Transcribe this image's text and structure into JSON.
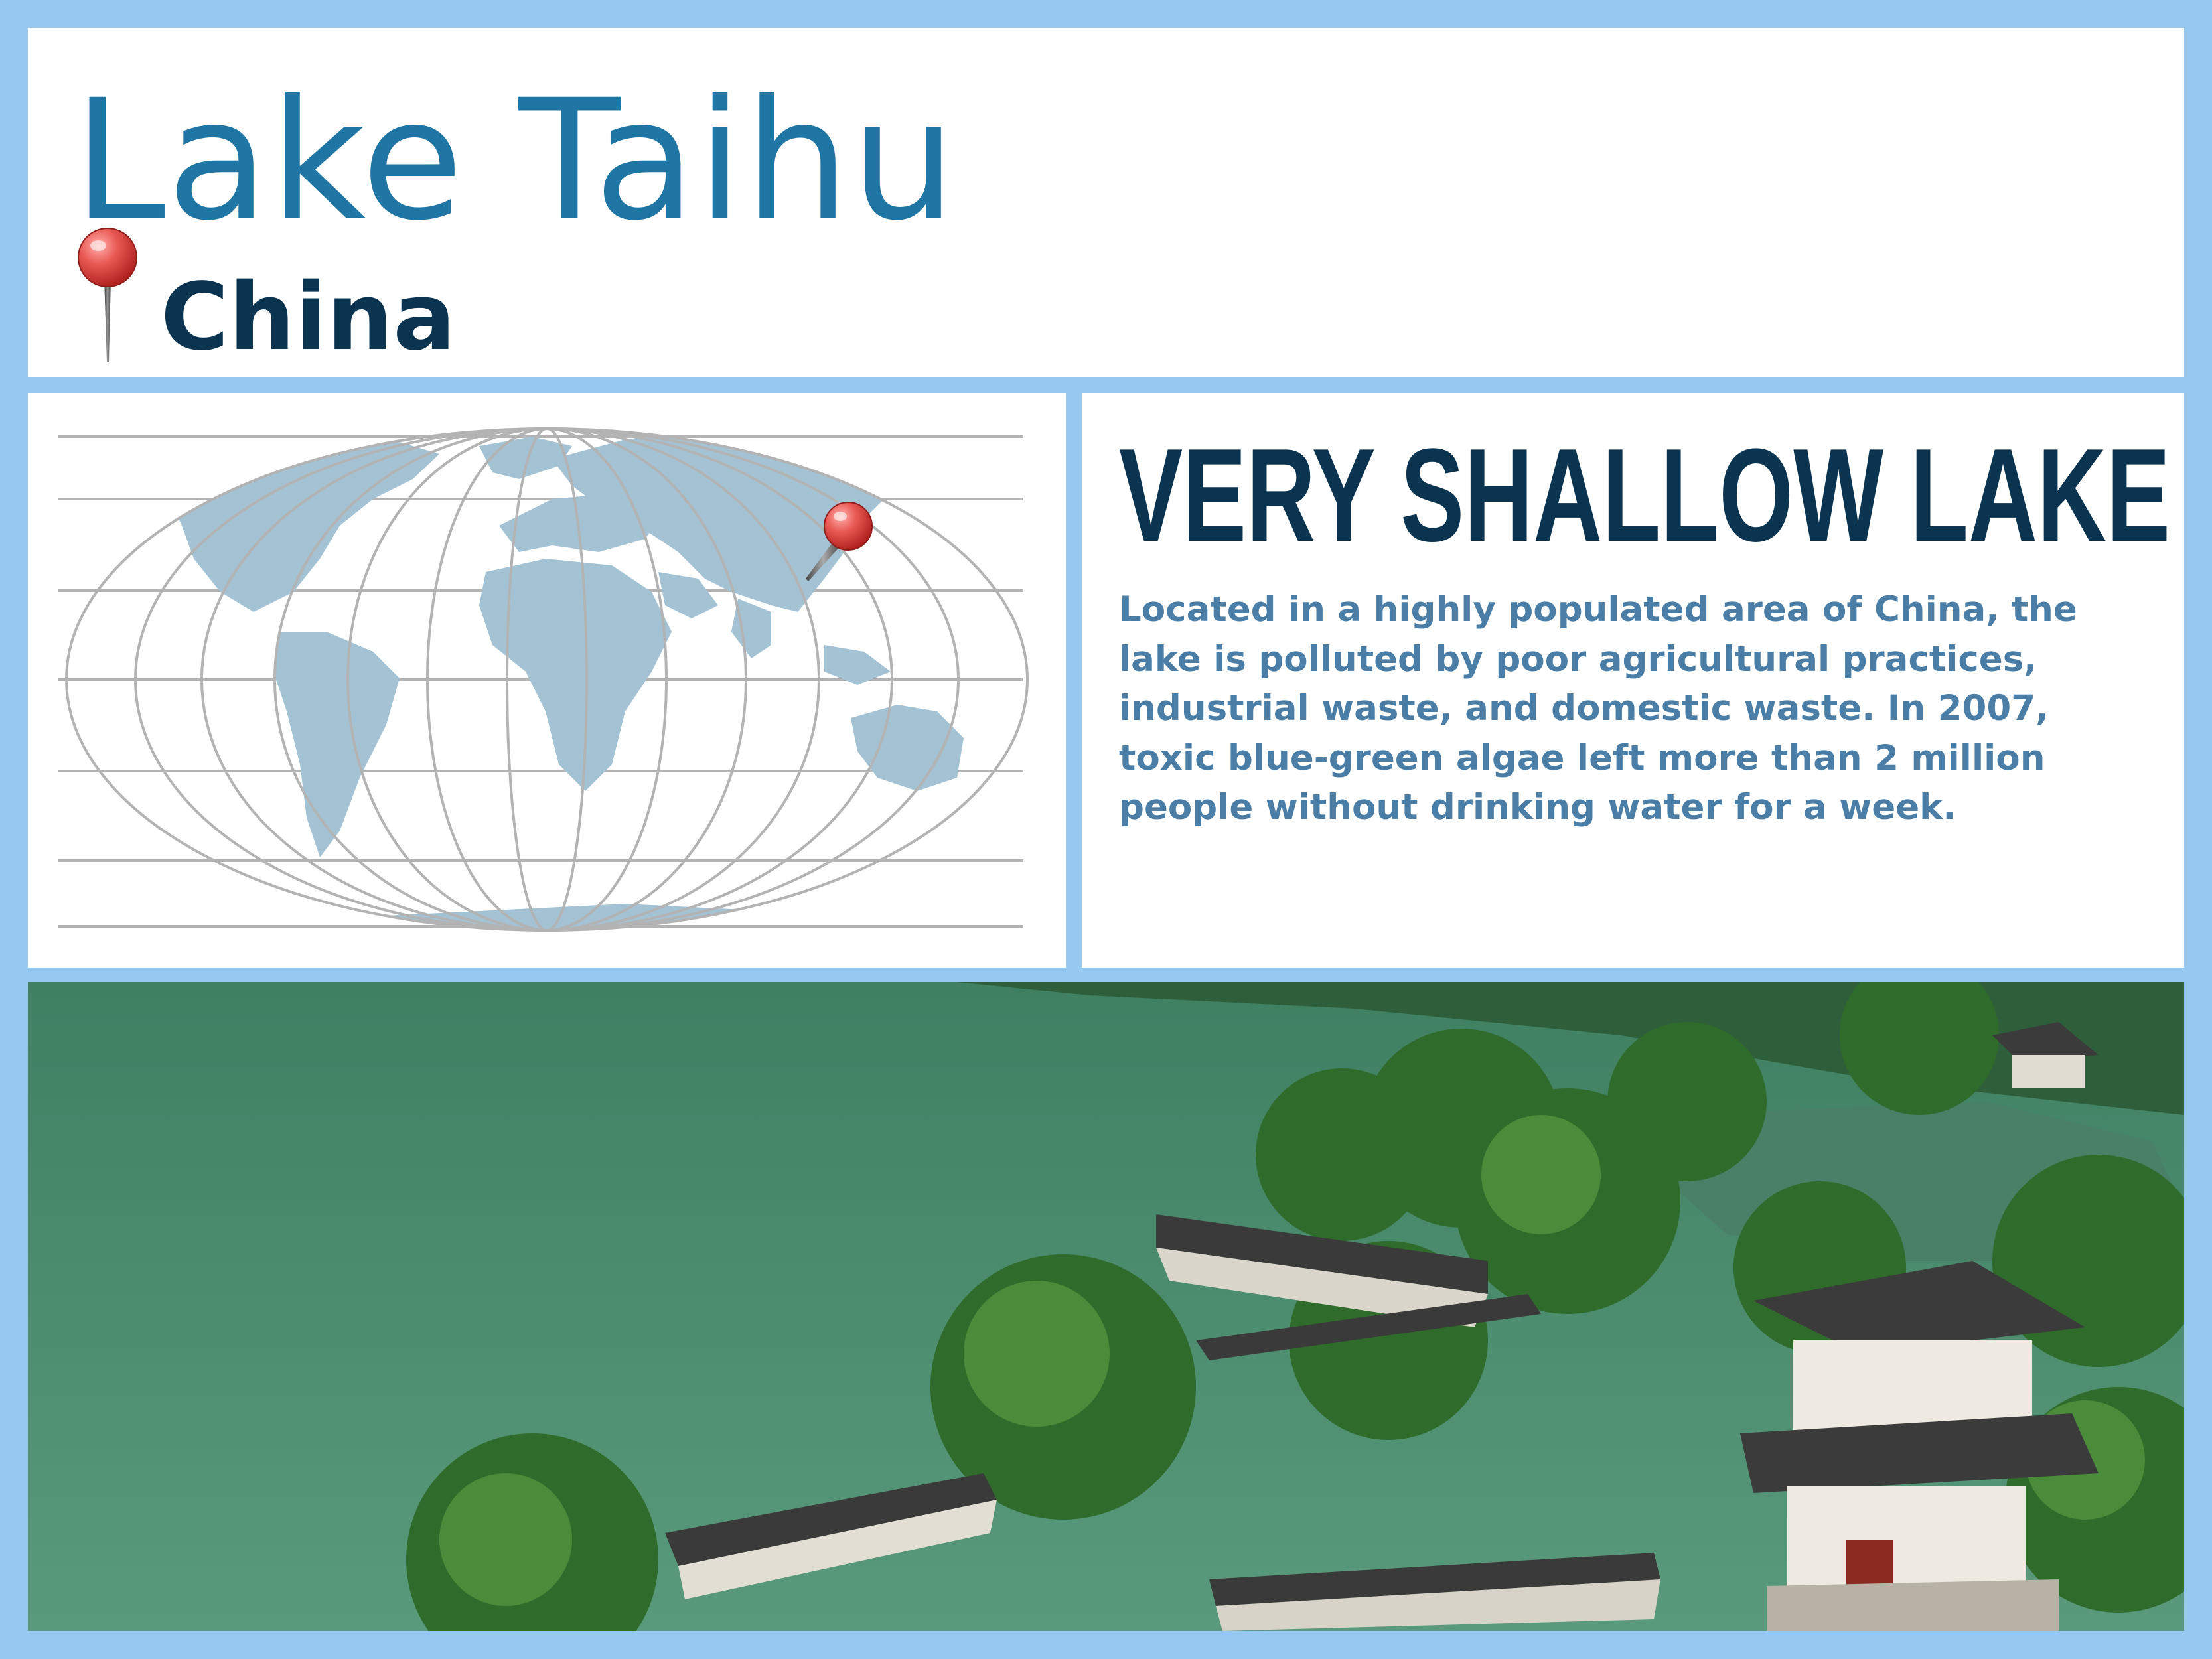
{
  "header": {
    "title": "Lake Taihu",
    "location": "China",
    "location_icon": "map-pin-icon"
  },
  "fact": {
    "heading": "VERY SHALLOW LAKE",
    "body_lines": [
      "Located in a highly populated area of China, the",
      "lake is polluted by poor agricultural practices,",
      "industrial waste, and domestic waste.  In 2007,",
      "toxic blue-green algae left more than 2 million",
      "people without drinking water for a week."
    ]
  },
  "map": {
    "land_color": "#a3c2d4",
    "grid_color": "#b3b3b3",
    "pin_color": "#e34a4a",
    "pin_icon": "map-pin-icon"
  },
  "photo": {
    "water_color": "#4d8a70",
    "foliage_color": "#2f6b2a"
  }
}
